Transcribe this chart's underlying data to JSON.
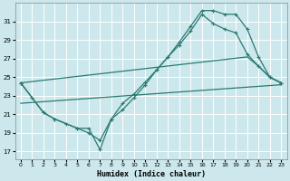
{
  "xlabel": "Humidex (Indice chaleur)",
  "bg_color": "#cce8ec",
  "grid_color": "#b0d8dc",
  "line_color": "#2a7a72",
  "xlim": [
    -0.5,
    23.5
  ],
  "ylim": [
    16.2,
    33.0
  ],
  "xticks": [
    0,
    1,
    2,
    3,
    4,
    5,
    6,
    7,
    8,
    9,
    10,
    11,
    12,
    13,
    14,
    15,
    16,
    17,
    18,
    19,
    20,
    21,
    22,
    23
  ],
  "yticks": [
    17,
    19,
    21,
    23,
    25,
    27,
    29,
    31
  ],
  "line1_x": [
    0,
    1,
    2,
    3,
    4,
    5,
    6,
    7,
    8,
    9,
    10,
    11,
    12,
    13,
    14,
    15,
    16,
    17,
    18,
    19,
    20,
    21,
    22,
    23
  ],
  "line1_y": [
    24.4,
    22.8,
    21.2,
    20.5,
    20.0,
    19.5,
    19.0,
    18.2,
    20.5,
    21.5,
    22.8,
    24.2,
    25.8,
    27.2,
    28.8,
    30.5,
    32.2,
    32.2,
    31.8,
    31.8,
    30.2,
    27.2,
    25.0,
    24.4
  ],
  "line2_x": [
    0,
    2,
    3,
    5,
    6,
    7,
    8,
    9,
    10,
    11,
    12,
    13,
    14,
    15,
    16,
    17,
    18,
    19,
    20,
    21,
    22,
    23
  ],
  "line2_y": [
    24.4,
    21.2,
    20.5,
    19.5,
    19.5,
    17.2,
    20.5,
    22.2,
    23.2,
    24.5,
    25.8,
    27.2,
    28.5,
    30.0,
    31.8,
    30.8,
    30.2,
    29.8,
    27.5,
    26.2,
    25.0,
    24.4
  ],
  "line3_x": [
    0,
    23
  ],
  "line3_y": [
    22.2,
    24.2
  ],
  "line4_x": [
    0,
    20,
    21,
    22,
    23
  ],
  "line4_y": [
    24.4,
    27.2,
    26.2,
    25.0,
    24.4
  ]
}
